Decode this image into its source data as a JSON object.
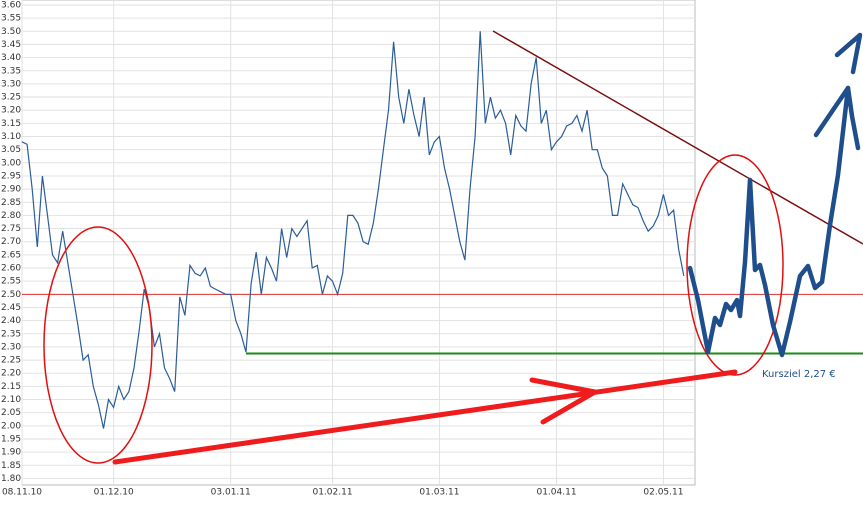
{
  "chart_data": {
    "type": "line",
    "x": [
      0,
      1,
      2,
      3,
      4,
      5,
      6,
      7,
      8,
      9,
      10,
      11,
      12,
      13,
      14,
      15,
      16,
      17,
      18,
      19,
      20,
      21,
      22,
      23,
      24,
      25,
      26,
      27,
      28,
      29,
      30,
      31,
      32,
      33,
      34,
      35,
      36,
      37,
      38,
      39,
      40,
      41,
      42,
      43,
      44,
      45,
      46,
      47,
      48,
      49,
      50,
      51,
      52,
      53,
      54,
      55,
      56,
      57,
      58,
      59,
      60,
      61,
      62,
      63,
      64,
      65,
      66,
      67,
      68,
      69,
      70,
      71,
      72,
      73,
      74,
      75,
      76,
      77,
      78,
      79,
      80,
      81,
      82,
      83,
      84,
      85,
      86,
      87,
      88,
      89,
      90,
      91,
      92,
      93,
      94,
      95,
      96,
      97,
      98,
      99,
      100,
      101,
      102,
      103,
      104,
      105,
      106,
      107,
      108,
      109,
      110,
      111,
      112,
      113,
      114,
      115,
      116,
      117,
      118,
      119,
      120,
      121,
      122,
      123,
      124,
      125,
      126,
      127,
      128,
      129,
      130
    ],
    "series": [
      {
        "color": "#2a5d9a",
        "values": [
          3.08,
          3.07,
          2.9,
          2.68,
          2.95,
          2.8,
          2.65,
          2.62,
          2.74,
          2.62,
          2.5,
          2.38,
          2.25,
          2.27,
          2.15,
          2.08,
          1.99,
          2.1,
          2.07,
          2.15,
          2.1,
          2.13,
          2.22,
          2.36,
          2.52,
          2.45,
          2.3,
          2.35,
          2.22,
          2.18,
          2.13,
          2.49,
          2.42,
          2.61,
          2.58,
          2.57,
          2.6,
          2.53,
          2.52,
          2.51,
          2.5,
          2.5,
          2.4,
          2.35,
          2.28,
          2.54,
          2.66,
          2.5,
          2.64,
          2.6,
          2.55,
          2.75,
          2.64,
          2.75,
          2.72,
          2.75,
          2.78,
          2.6,
          2.61,
          2.5,
          2.57,
          2.55,
          2.5,
          2.58,
          2.8,
          2.8,
          2.77,
          2.7,
          2.69,
          2.77,
          2.9,
          3.05,
          3.2,
          3.46,
          3.25,
          3.15,
          3.28,
          3.18,
          3.1,
          3.25,
          3.03,
          3.08,
          3.1,
          2.98,
          2.9,
          2.8,
          2.7,
          2.63,
          2.9,
          3.1,
          3.5,
          3.15,
          3.25,
          3.17,
          3.2,
          3.15,
          3.03,
          3.18,
          3.14,
          3.12,
          3.3,
          3.4,
          3.15,
          3.2,
          3.05,
          3.08,
          3.1,
          3.14,
          3.15,
          3.18,
          3.12,
          3.2,
          3.05,
          3.05,
          2.98,
          2.95,
          2.8,
          2.8,
          2.92,
          2.88,
          2.84,
          2.83,
          2.78,
          2.74,
          2.76,
          2.8,
          2.88,
          2.8,
          2.82,
          2.67,
          2.57
        ]
      }
    ],
    "xlim": [
      0,
      132.2
    ],
    "xticks": [
      {
        "value": 0,
        "label": "08.11.10"
      },
      {
        "value": 18,
        "label": "01.12.10"
      },
      {
        "value": 41,
        "label": "03.01.11"
      },
      {
        "value": 61,
        "label": "01.02.11"
      },
      {
        "value": 82,
        "label": "01.03.11"
      },
      {
        "value": 105,
        "label": "01.04.11"
      },
      {
        "value": 126,
        "label": "02.05.11"
      }
    ],
    "ylim": [
      1.775,
      3.6
    ],
    "yticks": [
      {
        "value": 1.8,
        "label": "1.80"
      },
      {
        "value": 1.85,
        "label": "1.85"
      },
      {
        "value": 1.9,
        "label": "1.90"
      },
      {
        "value": 1.95,
        "label": "1.95"
      },
      {
        "value": 2.0,
        "label": "2.00"
      },
      {
        "value": 2.05,
        "label": "2.05"
      },
      {
        "value": 2.1,
        "label": "2.10"
      },
      {
        "value": 2.15,
        "label": "2.15"
      },
      {
        "value": 2.2,
        "label": "2.20"
      },
      {
        "value": 2.25,
        "label": "2.25"
      },
      {
        "value": 2.3,
        "label": "2.30"
      },
      {
        "value": 2.35,
        "label": "2.35"
      },
      {
        "value": 2.4,
        "label": "2.40"
      },
      {
        "value": 2.45,
        "label": "2.45"
      },
      {
        "value": 2.5,
        "label": "2.50"
      },
      {
        "value": 2.55,
        "label": "2.55"
      },
      {
        "value": 2.6,
        "label": "2.60"
      },
      {
        "value": 2.65,
        "label": "2.65"
      },
      {
        "value": 2.7,
        "label": "2.70"
      },
      {
        "value": 2.75,
        "label": "2.75"
      },
      {
        "value": 2.8,
        "label": "2.80"
      },
      {
        "value": 2.85,
        "label": "2.85"
      },
      {
        "value": 2.9,
        "label": "2.90"
      },
      {
        "value": 2.95,
        "label": "2.95"
      },
      {
        "value": 3.0,
        "label": "3.00"
      },
      {
        "value": 3.05,
        "label": "3.05"
      },
      {
        "value": 3.1,
        "label": "3.10"
      },
      {
        "value": 3.15,
        "label": "3.15"
      },
      {
        "value": 3.2,
        "label": "3.20"
      },
      {
        "value": 3.25,
        "label": "3.25"
      },
      {
        "value": 3.3,
        "label": "3.30"
      },
      {
        "value": 3.35,
        "label": "3.35"
      },
      {
        "value": 3.4,
        "label": "3.40"
      },
      {
        "value": 3.45,
        "label": "3.45"
      },
      {
        "value": 3.5,
        "label": "3.50"
      },
      {
        "value": 3.55,
        "label": "3.55"
      },
      {
        "value": 3.6,
        "label": "3.60"
      }
    ],
    "grid": true,
    "reference_lines": [
      {
        "value": 2.5,
        "color": "#e03030"
      },
      {
        "value": 2.275,
        "color": "#1a8a1a"
      }
    ],
    "annotation": "Kursziel 2,27 €"
  }
}
